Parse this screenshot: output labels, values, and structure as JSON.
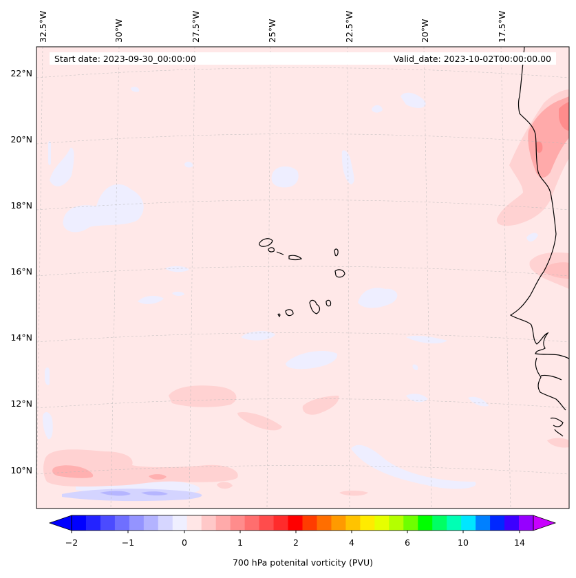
{
  "map": {
    "start_label": "Start date: 2023-09-30_00:00:00",
    "valid_label": "Valid_date: 2023-10-02T00:00:00.00",
    "lat_labels": [
      "22°N",
      "20°N",
      "18°N",
      "16°N",
      "14°N",
      "12°N",
      "10°N"
    ],
    "lon_labels": [
      "32.5°W",
      "30°W",
      "27.5°W",
      "25°W",
      "22.5°W",
      "20°W",
      "17.5°W"
    ],
    "background_color": "#ffe8e8",
    "coast_color": "#000000"
  },
  "colorbar": {
    "label": "700 hPa potenital vorticity (PVU)",
    "tick_labels": [
      "−2",
      "−1",
      "0",
      "1",
      "2",
      "4",
      "6",
      "10",
      "14"
    ],
    "colors": [
      "#0000ff",
      "#2323ff",
      "#4b4bff",
      "#6f6fff",
      "#9494ff",
      "#b3b3ff",
      "#d6d6ff",
      "#efefff",
      "#ffe6e6",
      "#ffc8c8",
      "#ffaaaa",
      "#ff8c8c",
      "#ff6e6e",
      "#ff4c4c",
      "#ff2b2b",
      "#ff0000",
      "#ff3c00",
      "#ff6e00",
      "#ff9a00",
      "#ffc300",
      "#ffeb00",
      "#e6ff00",
      "#b4ff00",
      "#6eff00",
      "#00ff00",
      "#00ff64",
      "#00ffb4",
      "#00e6ff",
      "#0080ff",
      "#0028ff",
      "#3c00ff",
      "#9600ff"
    ],
    "over_color": "#c800ff",
    "under_color": "#0000ff"
  }
}
